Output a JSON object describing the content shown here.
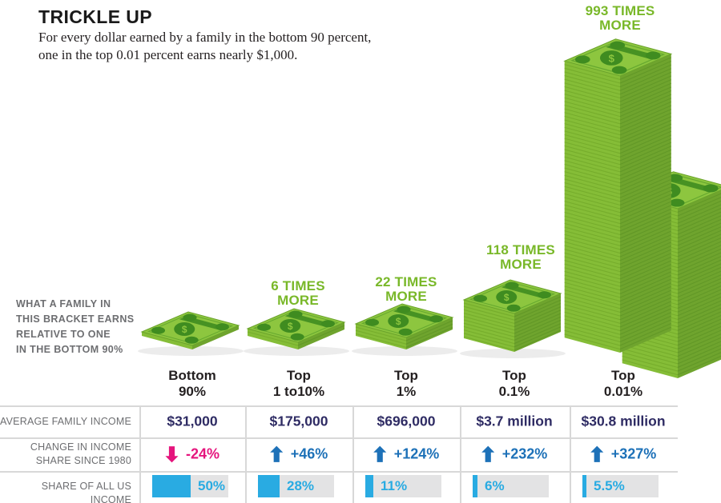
{
  "title": "TRICKLE UP",
  "subtitle": [
    "For every dollar earned by a family in the bottom 90 percent,",
    "one in the top 0.01 percent earns nearly $1,000."
  ],
  "note": [
    "WHAT A FAMILY IN",
    "THIS BRACKET EARNS",
    "RELATIVE TO ONE",
    "IN THE BOTTOM 90%"
  ],
  "palette": {
    "green_label": "#79b829",
    "bill_top": "#8dc63f",
    "bill_side_left": "#85bd37",
    "bill_side_right": "#6fa42e",
    "bill_stripe_left": "#76ad2c",
    "bill_stripe_right": "#629827",
    "bill_dark": "#3f8c20",
    "bill_edge": "#6aa32b",
    "navy": "#2f2c64",
    "blue": "#1d71b8",
    "pink": "#e5157d",
    "cyan": "#29abe2",
    "bar_bg": "#e3e3e4",
    "gray_text": "#6d6e71",
    "rule": "#d8d8d8"
  },
  "chart_data": {
    "type": "bar",
    "title": "TRICKLE UP",
    "subtitle": "For every dollar earned by a family in the bottom 90 percent, one in the top 0.01 percent earns nearly $1,000.",
    "categories": [
      "Bottom 90%",
      "Top 1 to10%",
      "Top 1%",
      "Top 0.1%",
      "Top 0.01%"
    ],
    "categories_lines": [
      [
        "Bottom",
        "90%"
      ],
      [
        "Top",
        "1 to10%"
      ],
      [
        "Top",
        "1%"
      ],
      [
        "Top",
        "0.1%"
      ],
      [
        "Top",
        "0.01%"
      ]
    ],
    "relative_earnings_multiple": [
      1,
      6,
      22,
      118,
      993
    ],
    "multiple_labels": [
      null,
      [
        "6 TIMES",
        "MORE"
      ],
      [
        "22 TIMES",
        "MORE"
      ],
      [
        "118 TIMES",
        "MORE"
      ],
      [
        "993 TIMES",
        "MORE"
      ]
    ],
    "rows": [
      {
        "label_lines": [
          "AVERAGE FAMILY INCOME"
        ],
        "type": "text",
        "values": [
          "$31,000",
          "$175,000",
          "$696,000",
          "$3.7 million",
          "$30.8 million"
        ]
      },
      {
        "label_lines": [
          "CHANGE IN INCOME",
          "SHARE SINCE 1980"
        ],
        "type": "arrow",
        "values": [
          "-24%",
          "+46%",
          "+124%",
          "+232%",
          "+327%"
        ],
        "directions": [
          "down",
          "up",
          "up",
          "up",
          "up"
        ]
      },
      {
        "label_lines": [
          "SHARE OF ALL US INCOME"
        ],
        "type": "bar",
        "values": [
          50,
          28,
          11,
          6,
          5.5
        ],
        "unit": "%"
      }
    ]
  }
}
